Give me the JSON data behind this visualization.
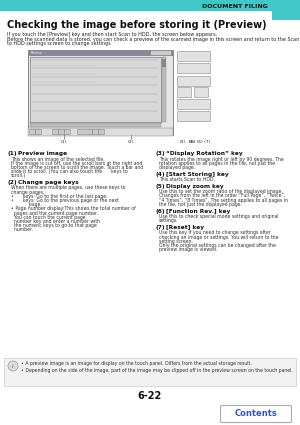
{
  "page_num": "6-22",
  "header_text": "DOCUMENT FILING",
  "header_tab_color": "#40C8C8",
  "title": "Checking the image before storing it (Preview)",
  "intro_lines": [
    "If you touch the [Preview] key and then start Scan to HDD, the screen below appears.",
    "Before the scanned data is stored, you can check a preview of the scanned image in this screen and return to the Scan",
    "to HDD settings screen to change settings"
  ],
  "body_left": [
    {
      "num": "(1)",
      "heading": "Preview image",
      "text_lines": [
        "This shows an image of the selected file.",
        "If the image is cut off, use the scroll bars at the right and",
        "bottom of the screen to scroll the image. Touch a bar and",
        "slide it to scroll. (You can also touch the      keys to",
        "scroll.)"
      ]
    },
    {
      "num": "(2)",
      "heading": "Change page keys",
      "text_lines": [
        "When there are multiple pages, use these keys to",
        "change pages.",
        "•      keys: Go to the first or the last page.",
        "•      keys: Go to the previous page or the next",
        "            page.",
        "• Page number display:This shows the total number of",
        "  pages and the current page number.",
        "  You can touch the current page",
        "  number key and enter a number with",
        "  the numeric keys to go to that page",
        "  number."
      ]
    }
  ],
  "body_right": [
    {
      "num": "(3)",
      "heading": "“Display Rotation” key",
      "text_lines": [
        "This rotates the image right or left by 90 degrees. The",
        "rotation applies to all pages in the file, not just the",
        "displayed page."
      ]
    },
    {
      "num": "(4)",
      "heading": "[Start Storing] key",
      "text_lines": [
        "This starts Scan to HDD."
      ]
    },
    {
      "num": "(5)",
      "heading": "Display zoom key",
      "text_lines": [
        "Use this to set the zoom ratio of the displayed image.",
        "Changes from the left in the order “Full Page”, “Twice”,",
        "“4 Times”, “8 Times”. The setting applies to all pages in",
        "the file, not just the displayed page."
      ]
    },
    {
      "num": "(6)",
      "heading": "[Function Rev.] key",
      "text_lines": [
        "Use this to check special mode settings and original",
        "settings."
      ]
    },
    {
      "num": "(7)",
      "heading": "[Reset] key",
      "text_lines": [
        "Use this key if you need to change settings after",
        "checking an image or settings. You will return to the",
        "setting screen.",
        "Only the original settings can be changed after the",
        "preview image is viewed."
      ]
    }
  ],
  "note_lines": [
    "• A preview image is an image for display on the touch panel. Differs from the actual storage result.",
    "• Depending on the side of the image, part of the image may be clipped off in the preview screen on the touch panel."
  ],
  "contents_button_text": "Contents",
  "contents_button_color": "#3355CC",
  "bg_color": "#FFFFFF"
}
